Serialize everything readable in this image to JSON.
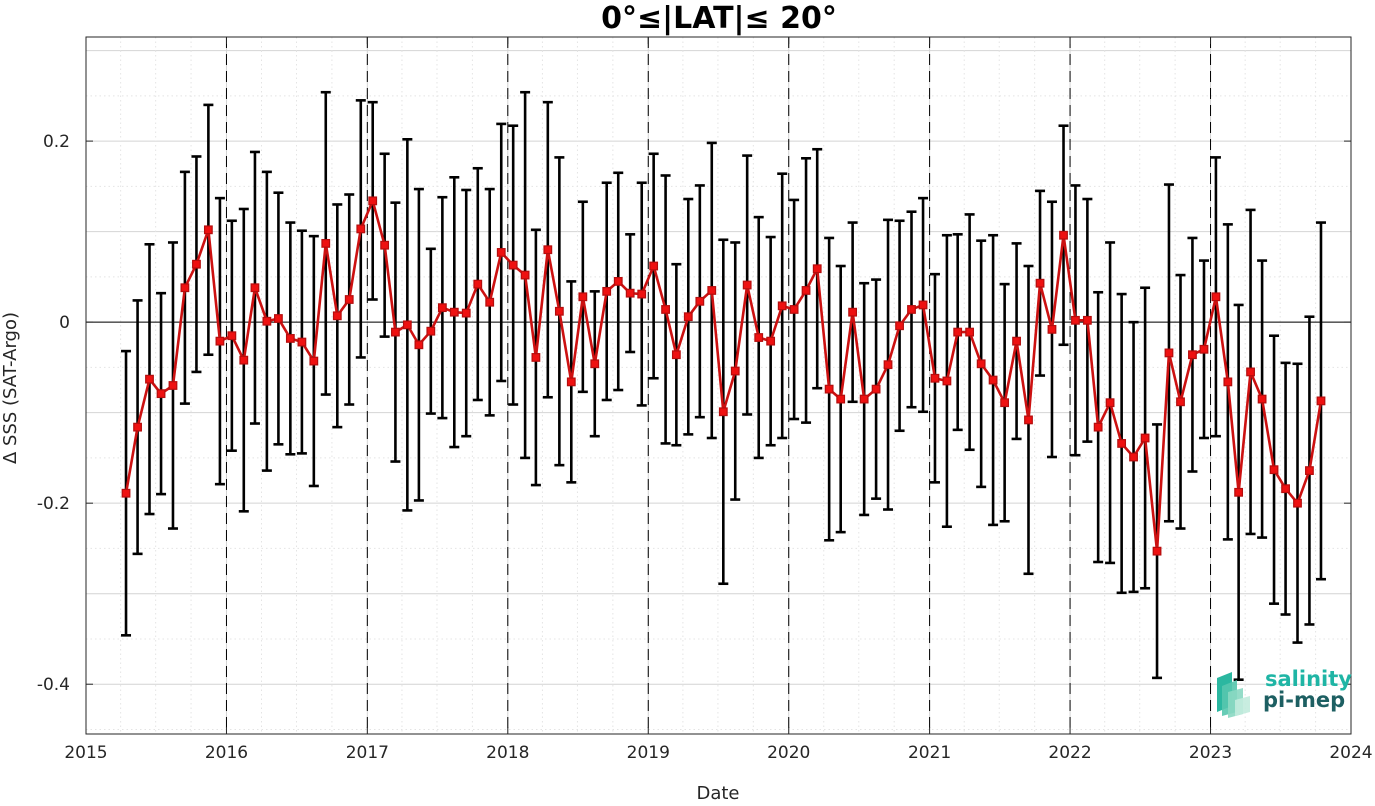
{
  "chart_data": {
    "type": "line",
    "title": "0°≤|LAT|≤ 20°",
    "xlabel": "Date",
    "ylabel": "Δ SSS (SAT-Argo)",
    "xlim": [
      "2015-01-01",
      "2024-01-01"
    ],
    "ylim": [
      -0.455,
      0.315
    ],
    "x_ticks": [
      "2015",
      "2016",
      "2017",
      "2018",
      "2019",
      "2020",
      "2021",
      "2022",
      "2023",
      "2024"
    ],
    "y_ticks": [
      -0.4,
      -0.2,
      0,
      0.2
    ],
    "y_tick_labels": [
      "-0.4",
      "-0.2",
      "0",
      "0.2"
    ],
    "grid": true,
    "year_separators": "dashed vertical lines at each year",
    "zero_line": true,
    "series": [
      {
        "marker": "square",
        "color": "#ee1111",
        "line_color": "#cc1111",
        "errorbar_color": "#000000",
        "x": [
          "2015-04-15",
          "2015-05-15",
          "2015-06-15",
          "2015-07-15",
          "2015-08-15",
          "2015-09-15",
          "2015-10-15",
          "2015-11-15",
          "2015-12-15",
          "2016-01-15",
          "2016-02-15",
          "2016-03-15",
          "2016-04-15",
          "2016-05-15",
          "2016-06-15",
          "2016-07-15",
          "2016-08-15",
          "2016-09-15",
          "2016-10-15",
          "2016-11-15",
          "2016-12-15",
          "2017-01-15",
          "2017-02-15",
          "2017-03-15",
          "2017-04-15",
          "2017-05-15",
          "2017-06-15",
          "2017-07-15",
          "2017-08-15",
          "2017-09-15",
          "2017-10-15",
          "2017-11-15",
          "2017-12-15",
          "2018-01-15",
          "2018-02-15",
          "2018-03-15",
          "2018-04-15",
          "2018-05-15",
          "2018-06-15",
          "2018-07-15",
          "2018-08-15",
          "2018-09-15",
          "2018-10-15",
          "2018-11-15",
          "2018-12-15",
          "2019-01-15",
          "2019-02-15",
          "2019-03-15",
          "2019-04-15",
          "2019-05-15",
          "2019-06-15",
          "2019-07-15",
          "2019-08-15",
          "2019-09-15",
          "2019-10-15",
          "2019-11-15",
          "2019-12-15",
          "2020-01-15",
          "2020-02-15",
          "2020-03-15",
          "2020-04-15",
          "2020-05-15",
          "2020-06-15",
          "2020-07-15",
          "2020-08-15",
          "2020-09-15",
          "2020-10-15",
          "2020-11-15",
          "2020-12-15",
          "2021-01-15",
          "2021-02-15",
          "2021-03-15",
          "2021-04-15",
          "2021-05-15",
          "2021-06-15",
          "2021-07-15",
          "2021-08-15",
          "2021-09-15",
          "2021-10-15",
          "2021-11-15",
          "2021-12-15",
          "2022-01-15",
          "2022-02-15",
          "2022-03-15",
          "2022-04-15",
          "2022-05-15",
          "2022-06-15",
          "2022-07-15",
          "2022-08-15",
          "2022-09-15",
          "2022-10-15",
          "2022-11-15",
          "2022-12-15",
          "2023-01-15",
          "2023-02-15",
          "2023-03-15",
          "2023-04-15",
          "2023-05-15",
          "2023-06-15",
          "2023-07-15",
          "2023-08-15",
          "2023-09-15",
          "2023-10-15"
        ],
        "values": [
          -0.189,
          -0.116,
          -0.063,
          -0.079,
          -0.07,
          0.038,
          0.064,
          0.102,
          -0.021,
          -0.015,
          -0.042,
          0.038,
          0.001,
          0.004,
          -0.018,
          -0.022,
          -0.043,
          0.087,
          0.007,
          0.025,
          0.103,
          0.134,
          0.085,
          -0.011,
          -0.003,
          -0.025,
          -0.01,
          0.016,
          0.011,
          0.01,
          0.042,
          0.022,
          0.077,
          0.063,
          0.052,
          -0.039,
          0.08,
          0.012,
          -0.066,
          0.028,
          -0.046,
          0.034,
          0.045,
          0.032,
          0.031,
          0.062,
          0.014,
          -0.036,
          0.006,
          0.023,
          0.035,
          -0.099,
          -0.054,
          0.041,
          -0.017,
          -0.021,
          0.018,
          0.014,
          0.035,
          0.059,
          -0.074,
          -0.085,
          0.011,
          -0.085,
          -0.074,
          -0.047,
          -0.004,
          0.014,
          0.019,
          -0.062,
          -0.065,
          -0.011,
          -0.011,
          -0.046,
          -0.064,
          -0.089,
          -0.021,
          -0.108,
          0.043,
          -0.008,
          0.096,
          0.002,
          0.002,
          -0.116,
          -0.089,
          -0.134,
          -0.149,
          -0.128,
          -0.253,
          -0.034,
          -0.088,
          -0.036,
          -0.03,
          0.028,
          -0.066,
          -0.188,
          -0.055,
          -0.085,
          -0.163,
          -0.184,
          -0.2,
          -0.164,
          -0.087
        ],
        "error": [
          0.157,
          0.14,
          0.149,
          0.111,
          0.158,
          0.128,
          0.119,
          0.138,
          0.158,
          0.127,
          0.167,
          0.15,
          0.165,
          0.139,
          0.128,
          0.123,
          0.138,
          0.167,
          0.123,
          0.116,
          0.142,
          0.109,
          0.101,
          0.143,
          0.205,
          0.172,
          0.091,
          0.122,
          0.149,
          0.136,
          0.128,
          0.125,
          0.142,
          0.154,
          0.202,
          0.141,
          0.163,
          0.17,
          0.111,
          0.105,
          0.08,
          0.12,
          0.12,
          0.065,
          0.123,
          0.124,
          0.148,
          0.1,
          0.13,
          0.128,
          0.163,
          0.19,
          0.142,
          0.143,
          0.133,
          0.115,
          0.146,
          0.121,
          0.146,
          0.132,
          0.167,
          0.147,
          0.099,
          0.128,
          0.121,
          0.16,
          0.116,
          0.108,
          0.118,
          0.115,
          0.161,
          0.108,
          0.13,
          0.136,
          0.16,
          0.131,
          0.108,
          0.17,
          0.102,
          0.141,
          0.121,
          0.149,
          0.134,
          0.149,
          0.177,
          0.165,
          0.149,
          0.166,
          0.14,
          0.186,
          0.14,
          0.129,
          0.098,
          0.154,
          0.174,
          0.207,
          0.179,
          0.153,
          0.148,
          0.139,
          0.154,
          0.17,
          0.197
        ]
      }
    ]
  },
  "logo": {
    "line1": "salinity",
    "line2": "pi-mep",
    "line1_color": "#1fb5a5",
    "line2_color": "#1d5f62"
  }
}
